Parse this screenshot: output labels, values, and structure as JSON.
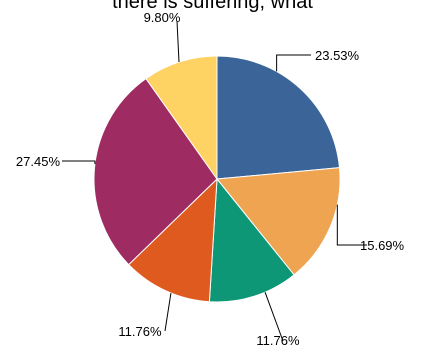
{
  "chart_data": {
    "type": "pie",
    "title": "there is suffering, what",
    "start_angle_deg": 0,
    "direction": "clockwise",
    "slices": [
      {
        "label": "23.53%",
        "value": 23.53,
        "color": "#3b6598"
      },
      {
        "label": "15.69%",
        "value": 15.69,
        "color": "#eea450"
      },
      {
        "label": "11.76%",
        "value": 11.76,
        "color": "#0e9776"
      },
      {
        "label": "11.76%",
        "value": 11.76,
        "color": "#df5a1f"
      },
      {
        "label": "27.45%",
        "value": 27.45,
        "color": "#9e2b61"
      },
      {
        "label": "9.80%",
        "value": 9.8,
        "color": "#fed263"
      }
    ]
  }
}
